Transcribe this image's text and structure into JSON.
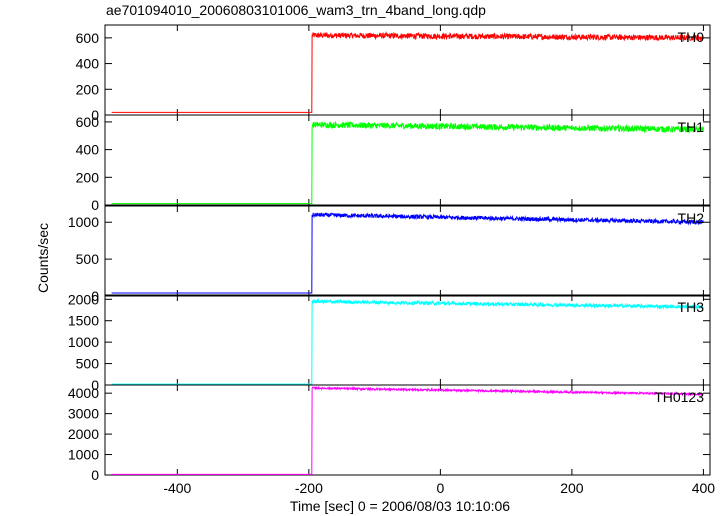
{
  "chart_data": {
    "type": "line",
    "title": "ae701094010_20060803101006_wam3_trn_4band_long.qdp",
    "ylabel": "Counts/sec",
    "xlabel": "Time [sec] 0 = 2006/08/03 10:10:06",
    "xlim": [
      -510,
      410
    ],
    "x_ticks": [
      -400,
      -200,
      0,
      200,
      400
    ],
    "step_time": -195,
    "panels": [
      {
        "name": "TH0",
        "color": "#ff0000",
        "ylim": [
          0,
          700
        ],
        "y_ticks": [
          0,
          200,
          400,
          600
        ],
        "pre_level": 20,
        "post_start": 620,
        "post_end": 600,
        "noise": 22
      },
      {
        "name": "TH1",
        "color": "#00ff00",
        "ylim": [
          0,
          650
        ],
        "y_ticks": [
          0,
          200,
          400,
          600
        ],
        "pre_level": 10,
        "post_start": 580,
        "post_end": 545,
        "noise": 22
      },
      {
        "name": "TH2",
        "color": "#0000ff",
        "ylim": [
          0,
          1220
        ],
        "y_ticks": [
          0,
          500,
          1000
        ],
        "pre_level": 40,
        "post_start": 1100,
        "post_end": 1000,
        "noise": 28
      },
      {
        "name": "TH3",
        "color": "#00ffff",
        "ylim": [
          0,
          2100
        ],
        "y_ticks": [
          0,
          500,
          1000,
          1500,
          2000
        ],
        "pre_level": 20,
        "post_start": 1950,
        "post_end": 1820,
        "noise": 40
      },
      {
        "name": "TH0123",
        "color": "#ff00ff",
        "ylim": [
          0,
          4400
        ],
        "y_ticks": [
          0,
          1000,
          2000,
          3000,
          4000
        ],
        "pre_level": 30,
        "post_start": 4250,
        "post_end": 3950,
        "noise": 45
      }
    ]
  }
}
